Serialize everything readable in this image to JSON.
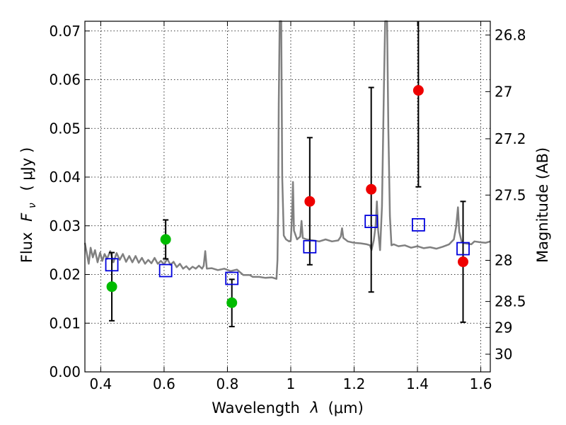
{
  "chart_data": {
    "type": "scatter",
    "title": "",
    "xlabel": "Wavelength  λ (μm)",
    "ylabel": "Flux  F_ν  ( μJy )",
    "ylabel_parts": {
      "prefix": "Flux",
      "var": "F",
      "sub": "ν",
      "unit": "( μJy )"
    },
    "xlabel_parts": {
      "prefix": "Wavelength",
      "var": "λ",
      "unit": "(μm)"
    },
    "y2label": "Magnitude (AB)",
    "xlim": [
      0.35,
      1.63
    ],
    "ylim": [
      0.0,
      0.072
    ],
    "grid": true,
    "x_ticks": [
      {
        "value": 0.4,
        "label": "0.4"
      },
      {
        "value": 0.6,
        "label": "0.6"
      },
      {
        "value": 0.8,
        "label": "0.8"
      },
      {
        "value": 1.0,
        "label": "1"
      },
      {
        "value": 1.2,
        "label": "1.2"
      },
      {
        "value": 1.4,
        "label": "1.4"
      },
      {
        "value": 1.6,
        "label": "1.6"
      }
    ],
    "y_ticks": [
      {
        "value": 0.0,
        "label": "0.00"
      },
      {
        "value": 0.01,
        "label": "0.01"
      },
      {
        "value": 0.02,
        "label": "0.02"
      },
      {
        "value": 0.03,
        "label": "0.03"
      },
      {
        "value": 0.04,
        "label": "0.04"
      },
      {
        "value": 0.05,
        "label": "0.05"
      },
      {
        "value": 0.06,
        "label": "0.06"
      },
      {
        "value": 0.07,
        "label": "0.07"
      }
    ],
    "y2_ticks": [
      {
        "value": 26.8,
        "label": "26.8"
      },
      {
        "value": 27.0,
        "label": "27"
      },
      {
        "value": 27.2,
        "label": "27.2"
      },
      {
        "value": 27.5,
        "label": "27.5"
      },
      {
        "value": 28.0,
        "label": "28"
      },
      {
        "value": 28.5,
        "label": "28.5"
      },
      {
        "value": 29.0,
        "label": "29"
      },
      {
        "value": 30.0,
        "label": "30"
      }
    ],
    "colors": {
      "spectrum": "#808080",
      "green": "#00bb00",
      "red": "#ee0000",
      "model": "#0000dd",
      "errorbar": "#000000"
    },
    "series": [
      {
        "name": "Model spectrum",
        "kind": "line",
        "points": [
          [
            0.35,
            0.0265
          ],
          [
            0.357,
            0.024
          ],
          [
            0.362,
            0.0222
          ],
          [
            0.368,
            0.0255
          ],
          [
            0.375,
            0.0235
          ],
          [
            0.382,
            0.025
          ],
          [
            0.39,
            0.0225
          ],
          [
            0.398,
            0.0245
          ],
          [
            0.405,
            0.0228
          ],
          [
            0.412,
            0.0242
          ],
          [
            0.42,
            0.0232
          ],
          [
            0.43,
            0.0248
          ],
          [
            0.44,
            0.0225
          ],
          [
            0.45,
            0.0244
          ],
          [
            0.46,
            0.023
          ],
          [
            0.47,
            0.0242
          ],
          [
            0.48,
            0.0226
          ],
          [
            0.49,
            0.0238
          ],
          [
            0.5,
            0.0225
          ],
          [
            0.51,
            0.0238
          ],
          [
            0.52,
            0.0224
          ],
          [
            0.53,
            0.0234
          ],
          [
            0.54,
            0.0222
          ],
          [
            0.55,
            0.023
          ],
          [
            0.56,
            0.0223
          ],
          [
            0.57,
            0.0234
          ],
          [
            0.58,
            0.0222
          ],
          [
            0.59,
            0.0228
          ],
          [
            0.6,
            0.0221
          ],
          [
            0.61,
            0.0232
          ],
          [
            0.62,
            0.022
          ],
          [
            0.63,
            0.0226
          ],
          [
            0.64,
            0.0215
          ],
          [
            0.65,
            0.0222
          ],
          [
            0.66,
            0.0212
          ],
          [
            0.67,
            0.0217
          ],
          [
            0.68,
            0.021
          ],
          [
            0.69,
            0.0216
          ],
          [
            0.7,
            0.0212
          ],
          [
            0.71,
            0.0218
          ],
          [
            0.72,
            0.0212
          ],
          [
            0.725,
            0.0218
          ],
          [
            0.73,
            0.0248
          ],
          [
            0.735,
            0.0212
          ],
          [
            0.75,
            0.0213
          ],
          [
            0.77,
            0.0209
          ],
          [
            0.79,
            0.0212
          ],
          [
            0.81,
            0.0207
          ],
          [
            0.83,
            0.021
          ],
          [
            0.85,
            0.0199
          ],
          [
            0.87,
            0.0199
          ],
          [
            0.88,
            0.0195
          ],
          [
            0.9,
            0.0195
          ],
          [
            0.92,
            0.0193
          ],
          [
            0.94,
            0.0194
          ],
          [
            0.955,
            0.0191
          ],
          [
            0.958,
            0.023
          ],
          [
            0.96,
            0.033
          ],
          [
            0.962,
            0.055
          ],
          [
            0.965,
            0.072
          ],
          [
            0.97,
            0.072
          ],
          [
            0.973,
            0.04
          ],
          [
            0.978,
            0.028
          ],
          [
            0.985,
            0.0272
          ],
          [
            0.995,
            0.0268
          ],
          [
            1.0,
            0.027
          ],
          [
            1.004,
            0.032
          ],
          [
            1.007,
            0.039
          ],
          [
            1.01,
            0.029
          ],
          [
            1.02,
            0.0272
          ],
          [
            1.03,
            0.0278
          ],
          [
            1.034,
            0.031
          ],
          [
            1.038,
            0.0275
          ],
          [
            1.05,
            0.0272
          ],
          [
            1.07,
            0.027
          ],
          [
            1.09,
            0.0268
          ],
          [
            1.11,
            0.0272
          ],
          [
            1.13,
            0.0268
          ],
          [
            1.15,
            0.027
          ],
          [
            1.158,
            0.0278
          ],
          [
            1.162,
            0.0295
          ],
          [
            1.166,
            0.0275
          ],
          [
            1.18,
            0.0268
          ],
          [
            1.2,
            0.0265
          ],
          [
            1.22,
            0.0264
          ],
          [
            1.24,
            0.0262
          ],
          [
            1.25,
            0.026
          ],
          [
            1.255,
            0.025
          ],
          [
            1.262,
            0.027
          ],
          [
            1.268,
            0.03
          ],
          [
            1.272,
            0.035
          ],
          [
            1.276,
            0.029
          ],
          [
            1.282,
            0.025
          ],
          [
            1.288,
            0.034
          ],
          [
            1.294,
            0.058
          ],
          [
            1.298,
            0.072
          ],
          [
            1.304,
            0.072
          ],
          [
            1.308,
            0.05
          ],
          [
            1.313,
            0.032
          ],
          [
            1.318,
            0.026
          ],
          [
            1.325,
            0.0262
          ],
          [
            1.34,
            0.0258
          ],
          [
            1.36,
            0.026
          ],
          [
            1.38,
            0.0255
          ],
          [
            1.4,
            0.0258
          ],
          [
            1.42,
            0.0254
          ],
          [
            1.44,
            0.0256
          ],
          [
            1.46,
            0.0253
          ],
          [
            1.48,
            0.0257
          ],
          [
            1.5,
            0.0262
          ],
          [
            1.515,
            0.0272
          ],
          [
            1.522,
            0.0298
          ],
          [
            1.528,
            0.0338
          ],
          [
            1.532,
            0.0288
          ],
          [
            1.54,
            0.0266
          ],
          [
            1.55,
            0.0264
          ],
          [
            1.57,
            0.0262
          ],
          [
            1.58,
            0.0268
          ],
          [
            1.6,
            0.0266
          ],
          [
            1.615,
            0.0265
          ],
          [
            1.63,
            0.0268
          ]
        ]
      },
      {
        "name": "Photometry (green)",
        "kind": "points",
        "points": [
          {
            "x": 0.435,
            "y": 0.0175,
            "ylo": 0.0105,
            "yhi": 0.0245
          },
          {
            "x": 0.605,
            "y": 0.0272,
            "ylo": 0.0232,
            "yhi": 0.0312
          },
          {
            "x": 0.814,
            "y": 0.0142,
            "ylo": 0.0093,
            "yhi": 0.019
          }
        ]
      },
      {
        "name": "Photometry (red)",
        "kind": "points",
        "points": [
          {
            "x": 1.06,
            "y": 0.035,
            "ylo": 0.022,
            "yhi": 0.0481
          },
          {
            "x": 1.254,
            "y": 0.0375,
            "ylo": 0.0164,
            "yhi": 0.0584
          },
          {
            "x": 1.403,
            "y": 0.0578,
            "ylo": 0.038,
            "yhi": 0.072
          },
          {
            "x": 1.544,
            "y": 0.0226,
            "ylo": 0.0102,
            "yhi": 0.035
          }
        ]
      },
      {
        "name": "Model bandpass flux",
        "kind": "points",
        "points": [
          {
            "x": 0.435,
            "y": 0.022
          },
          {
            "x": 0.605,
            "y": 0.0208
          },
          {
            "x": 0.814,
            "y": 0.0192
          },
          {
            "x": 1.06,
            "y": 0.0257
          },
          {
            "x": 1.254,
            "y": 0.0309
          },
          {
            "x": 1.403,
            "y": 0.0302
          },
          {
            "x": 1.544,
            "y": 0.0253
          }
        ]
      }
    ]
  }
}
